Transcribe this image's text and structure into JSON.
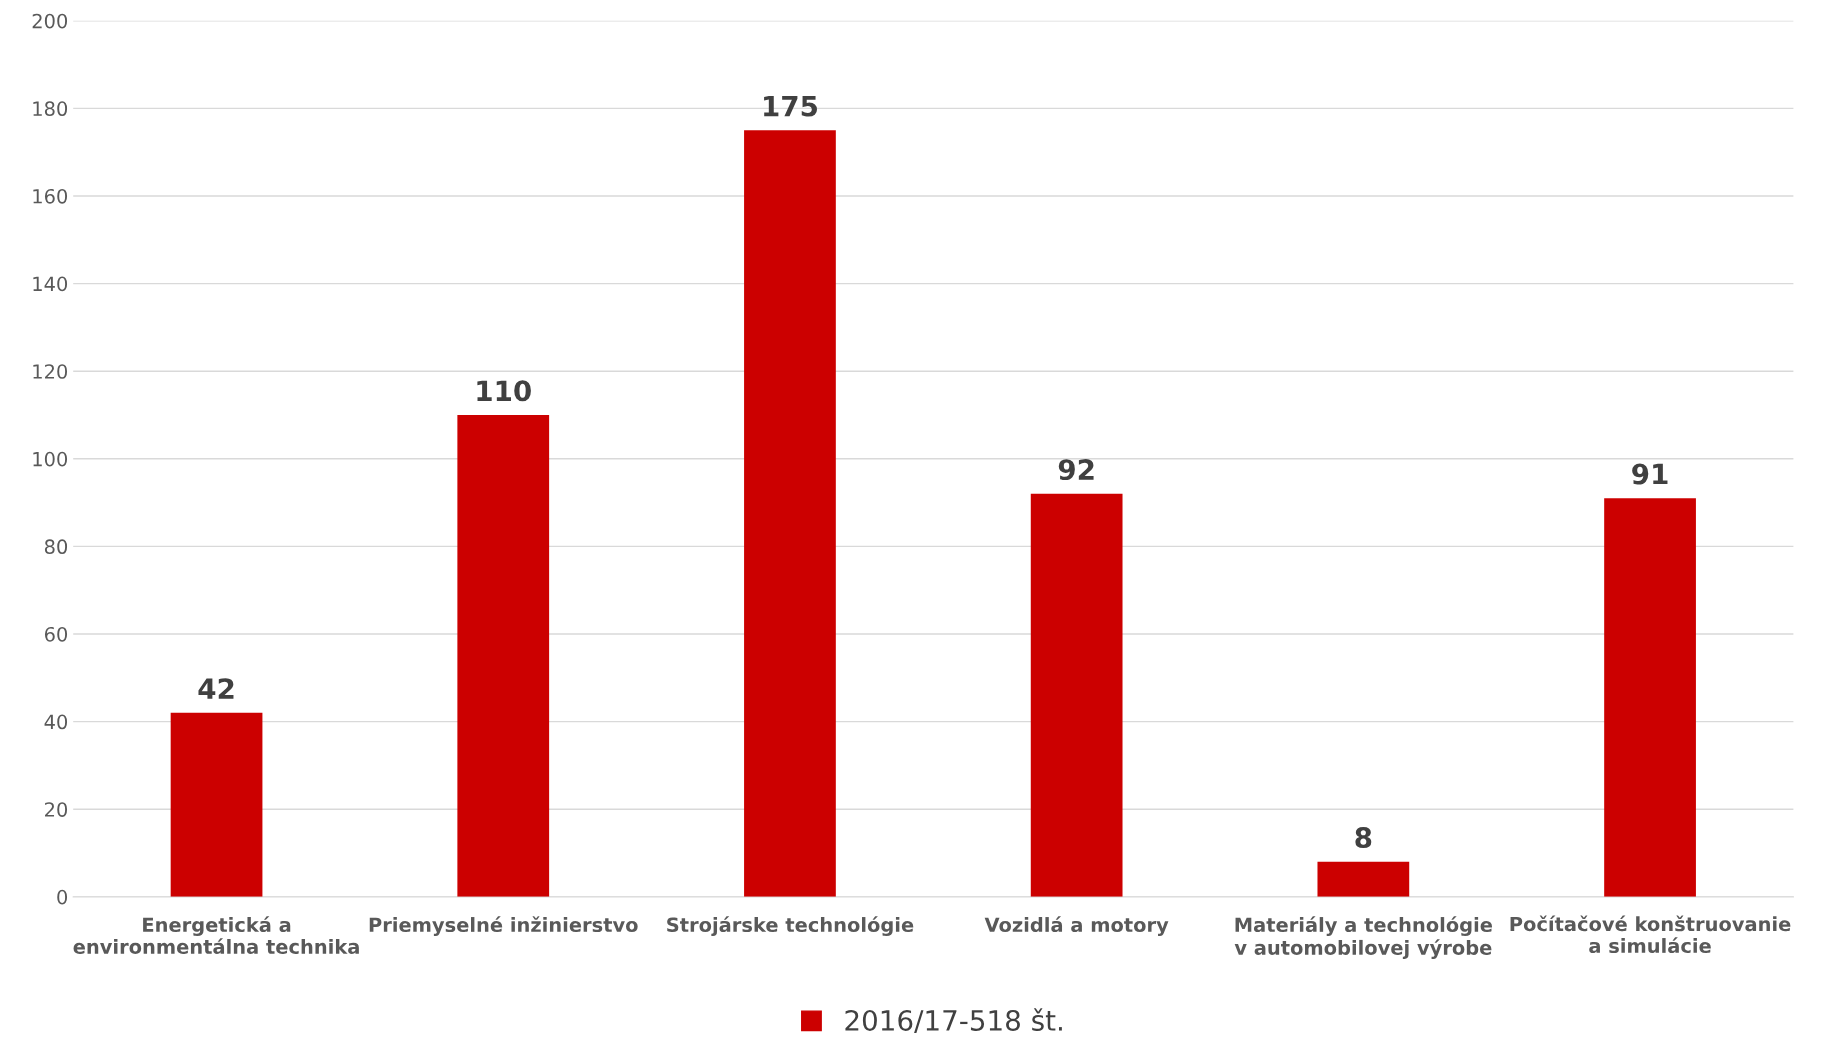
{
  "chart_data": {
    "type": "bar",
    "categories": [
      "Energetická a environmentálna technika",
      "Priemyselné inžinierstvo",
      "Strojárske technológie",
      "Vozidlá a motory",
      "Materiály a technológie v automobilovej výrobe",
      "Počítačové konštruovanie a simulácie"
    ],
    "series": [
      {
        "name": "2016/17-518 št.",
        "color": "#cc0000",
        "values": [
          42,
          110,
          175,
          92,
          8,
          91
        ]
      }
    ],
    "ylim": [
      0,
      200
    ],
    "yticks": [
      0,
      20,
      40,
      60,
      80,
      100,
      120,
      140,
      160,
      180,
      200
    ],
    "grid": "y",
    "legend": "bottom",
    "data_labels": true
  }
}
